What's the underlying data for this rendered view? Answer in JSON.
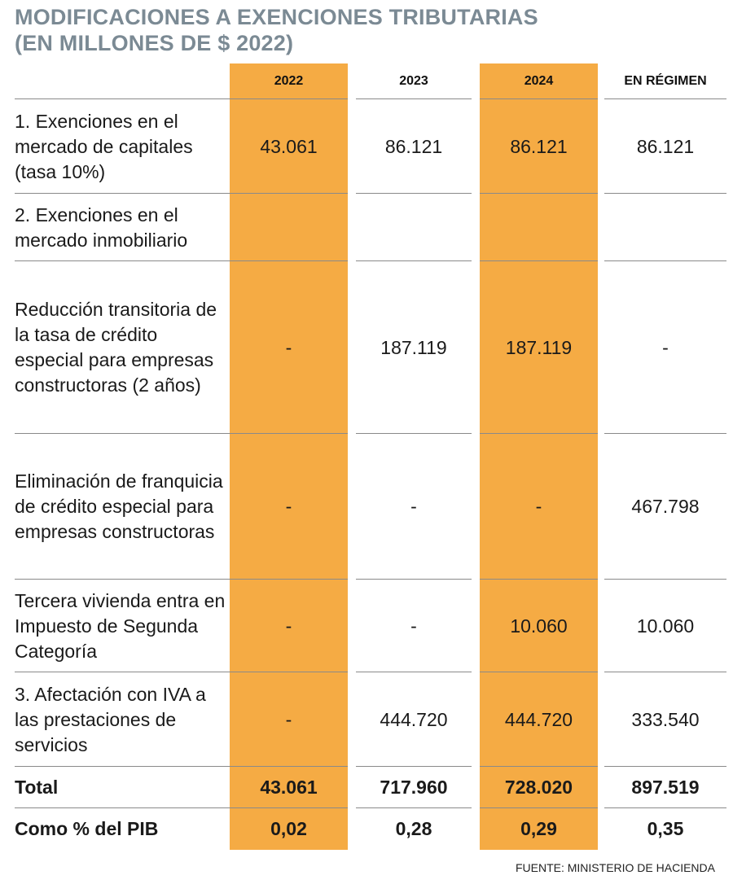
{
  "header": {
    "title": "MODIFICACIONES A EXENCIONES TRIBUTARIAS",
    "subtitle": "(EN MILLONES DE $ 2022)"
  },
  "table": {
    "columns": [
      "2022",
      "2023",
      "2024",
      "EN RÉGIMEN"
    ],
    "rows": [
      {
        "label": "1. Exenciones en el mercado de capitales (tasa 10%)",
        "cells": [
          "43.061",
          "86.121",
          "86.121",
          "86.121"
        ]
      },
      {
        "label": "2. Exenciones en el mercado inmobiliario"
      },
      {
        "label": "Reducción transitoria de la tasa de crédito especial para empresas constructoras (2 años)",
        "cells": [
          "-",
          "187.119",
          "187.119",
          "-"
        ]
      },
      {
        "label": "Eliminación de franquicia de crédito especial para empresas constructoras",
        "cells": [
          "-",
          "-",
          "-",
          "467.798"
        ]
      },
      {
        "label": "Tercera vivienda entra en Impuesto de Segunda Categoría",
        "cells": [
          "-",
          "-",
          "10.060",
          "10.060"
        ]
      },
      {
        "label": "3. Afectación con IVA a las prestaciones de servicios",
        "cells": [
          "-",
          "444.720",
          "444.720",
          "333.540"
        ]
      },
      {
        "label": "Total",
        "cells": [
          "43.061",
          "717.960",
          "728.020",
          "897.519"
        ],
        "bold": true
      },
      {
        "label": "Como % del PIB",
        "cells": [
          "0,02",
          "0,28",
          "0,29",
          "0,35"
        ],
        "bold": true
      }
    ]
  },
  "source": "FUENTE: MINISTERIO DE HACIENDA"
}
